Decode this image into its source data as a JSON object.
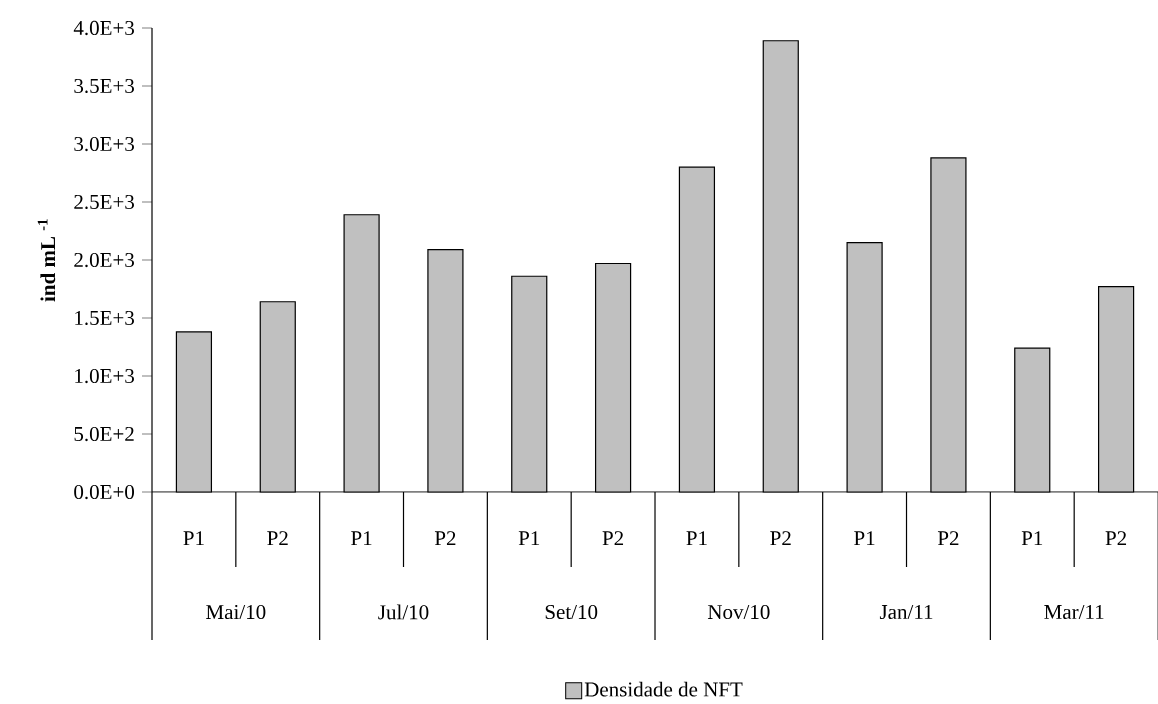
{
  "chart_data": {
    "type": "bar",
    "ylabel": "ind mL $^{-1}$",
    "categories": [
      "P1",
      "P2",
      "P1",
      "P2",
      "P1",
      "P2",
      "P1",
      "P2",
      "P1",
      "P2",
      "P1",
      "P2"
    ],
    "annotations": [
      "Mai/10",
      "Jul/10",
      "Set/10",
      "Nov/10",
      "Jan/11",
      "Mar/11"
    ],
    "series": [
      {
        "name": "Densidade de NFT",
        "color": "#c0c0c0",
        "values": [
          1380,
          1640,
          2390,
          2090,
          1860,
          1970,
          2800,
          3890,
          2150,
          2880,
          1240,
          1770
        ]
      }
    ],
    "ylim": [
      0,
      4000
    ],
    "yticks": [
      {
        "value": 0,
        "label": "0.0E+0"
      },
      {
        "value": 500,
        "label": "5.0E+2"
      },
      {
        "value": 1000,
        "label": "1.0E+3"
      },
      {
        "value": 1500,
        "label": "1.5E+3"
      },
      {
        "value": 2000,
        "label": "2.0E+3"
      },
      {
        "value": 2500,
        "label": "2.5E+3"
      },
      {
        "value": 3000,
        "label": "3.0E+3"
      },
      {
        "value": 3500,
        "label": "3.5E+3"
      },
      {
        "value": 4000,
        "label": "4.0E+3"
      }
    ],
    "grid": false,
    "legend": "bottom"
  }
}
